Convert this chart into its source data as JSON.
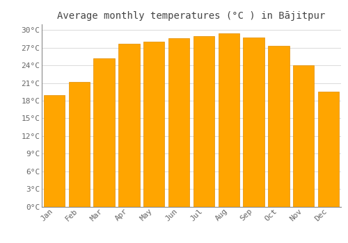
{
  "title": "Average monthly temperatures (°C ) in Bājitpur",
  "months": [
    "Jan",
    "Feb",
    "Mar",
    "Apr",
    "May",
    "Jun",
    "Jul",
    "Aug",
    "Sep",
    "Oct",
    "Nov",
    "Dec"
  ],
  "temperatures": [
    19.0,
    21.2,
    25.2,
    27.7,
    28.1,
    28.6,
    29.0,
    29.5,
    28.7,
    27.3,
    24.0,
    19.6
  ],
  "bar_color_face": "#FFA500",
  "bar_color_edge": "#E08C00",
  "bar_width": 0.85,
  "ylim": [
    0,
    31
  ],
  "yticks": [
    0,
    3,
    6,
    9,
    12,
    15,
    18,
    21,
    24,
    27,
    30
  ],
  "ytick_labels": [
    "0°C",
    "3°C",
    "6°C",
    "9°C",
    "12°C",
    "15°C",
    "18°C",
    "21°C",
    "24°C",
    "27°C",
    "30°C"
  ],
  "grid_color": "#cccccc",
  "background_color": "#ffffff",
  "title_fontsize": 10,
  "tick_fontsize": 8,
  "title_color": "#444444",
  "tick_color": "#666666"
}
